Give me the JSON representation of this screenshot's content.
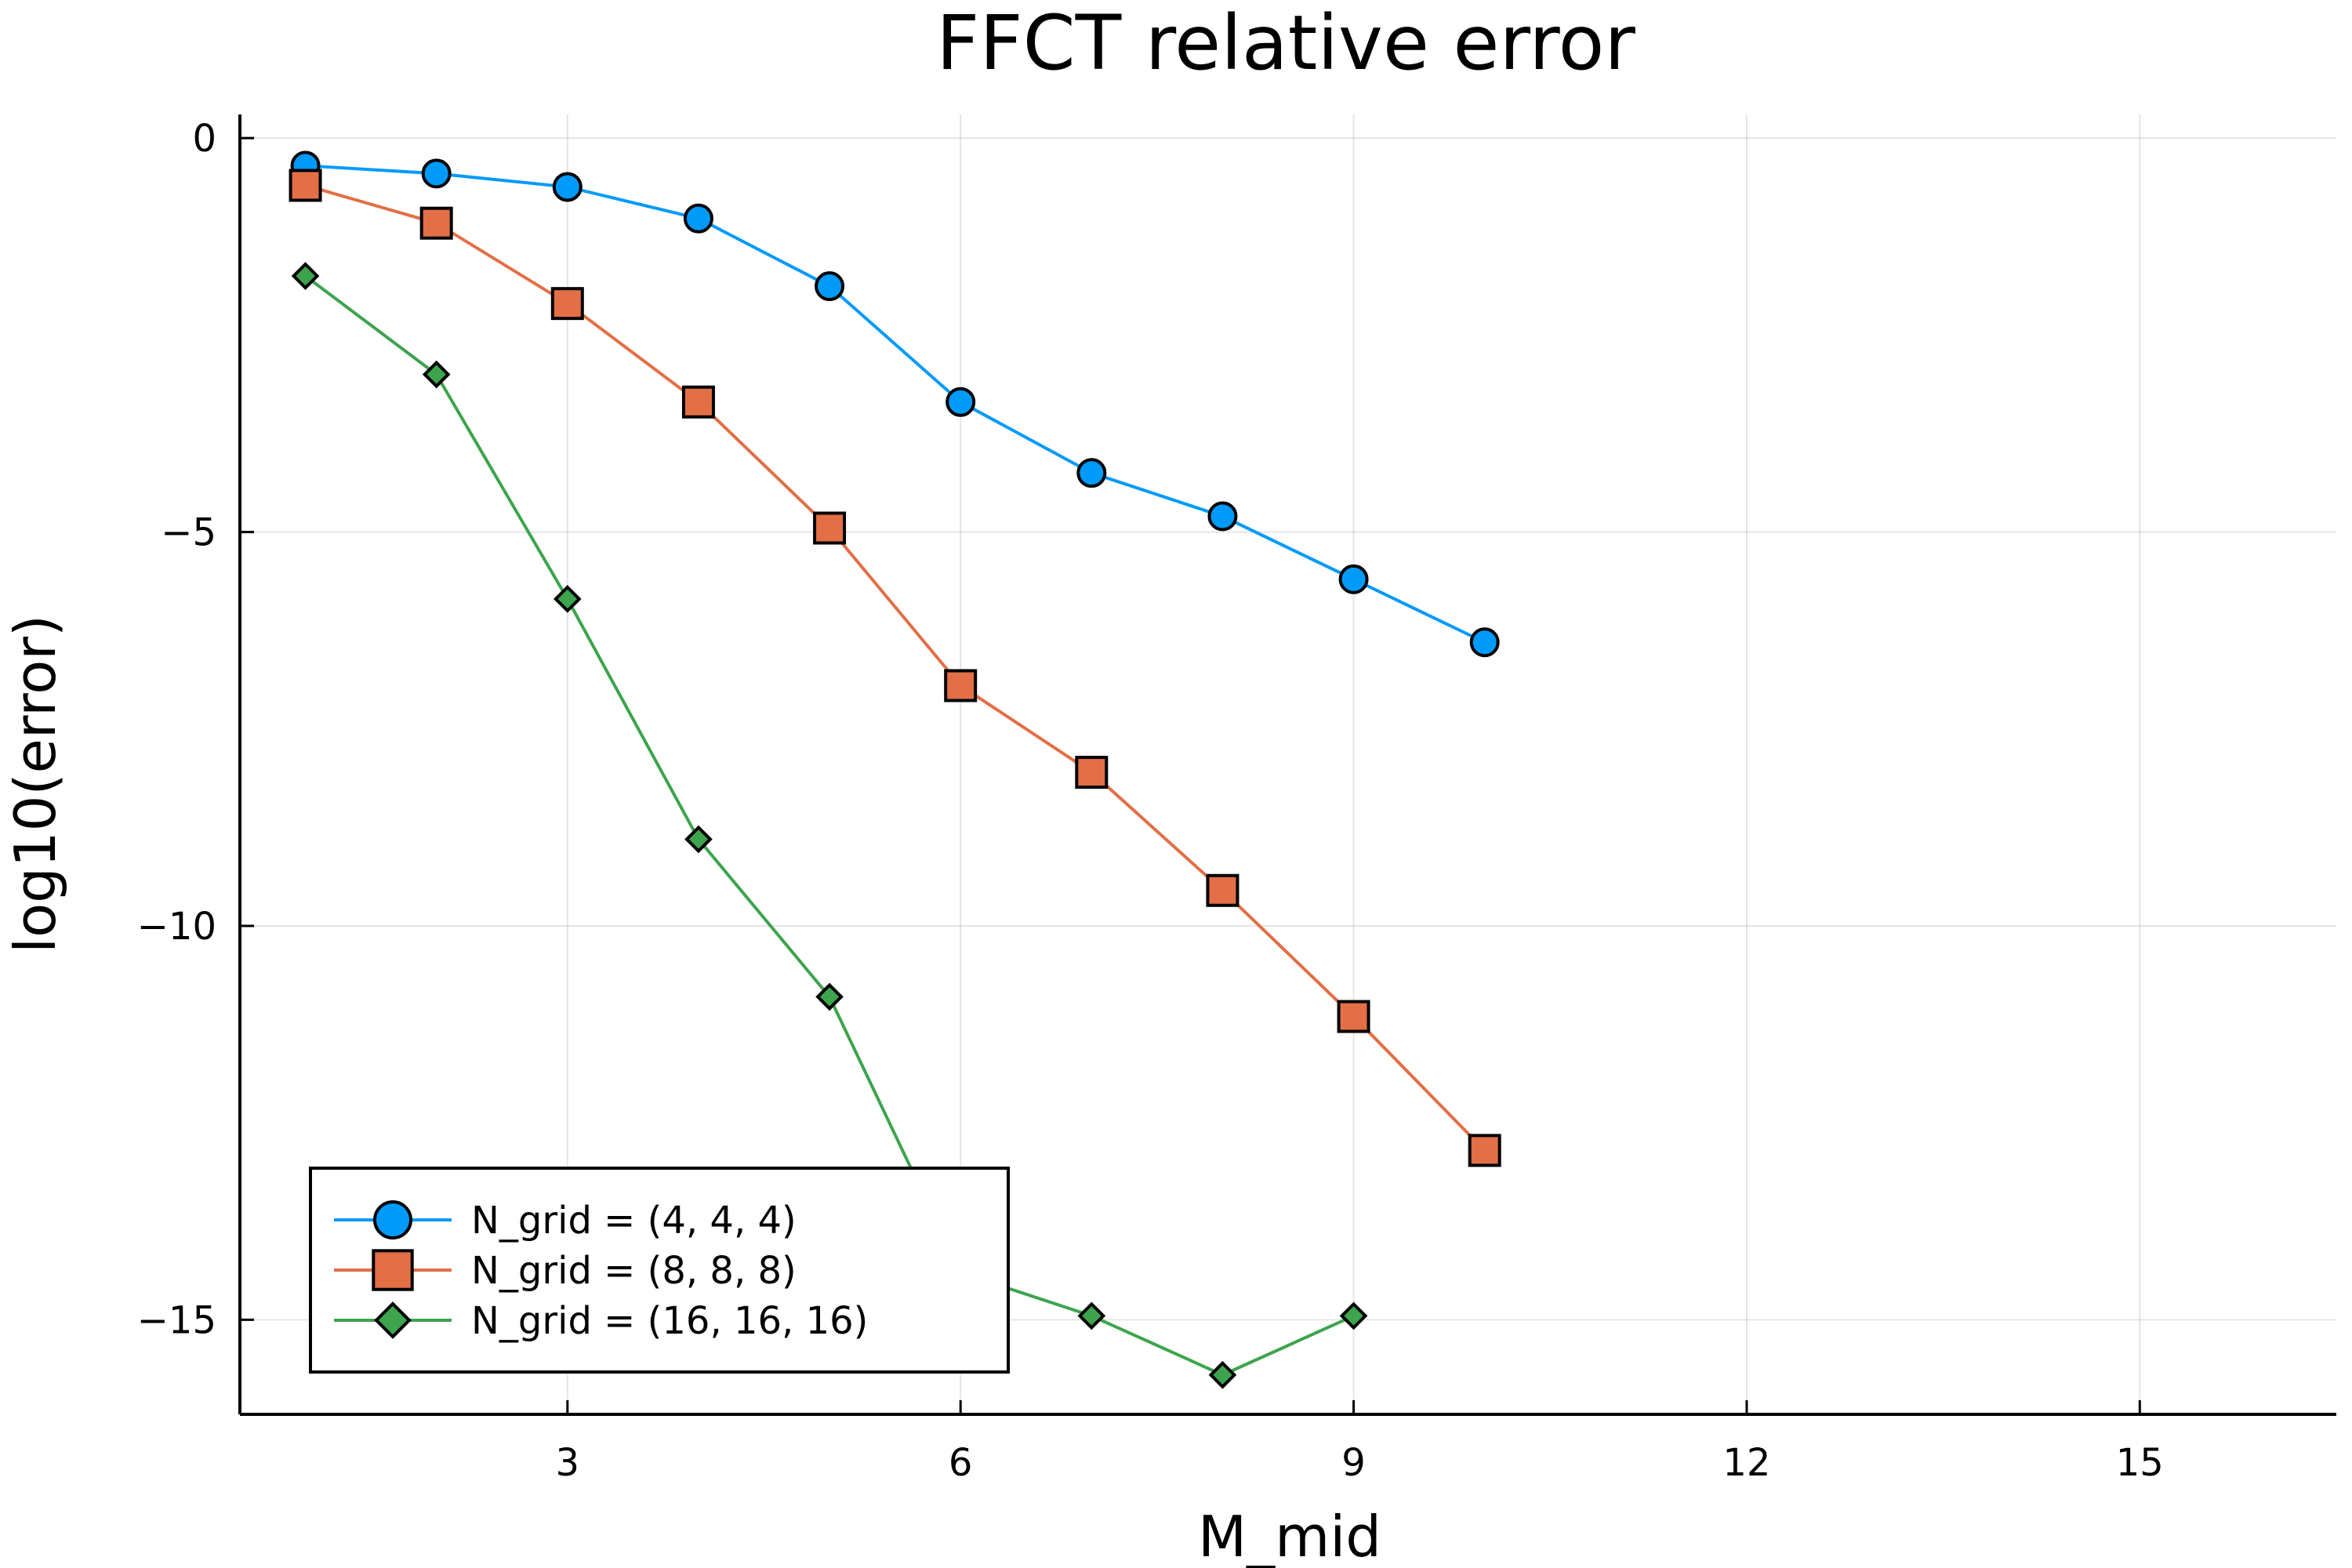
{
  "chart_data": {
    "type": "line",
    "title": "FFCT relative error",
    "xlabel": "M_mid",
    "ylabel": "log10(error)",
    "xlim": [
      0.5,
      16.5
    ],
    "ylim": [
      -16.2,
      0.3
    ],
    "xticks": [
      3,
      6,
      9,
      12,
      15
    ],
    "yticks": [
      0,
      -5,
      -10,
      -15
    ],
    "xtick_labels": [
      "3",
      "6",
      "9",
      "12",
      "15"
    ],
    "ytick_labels": [
      "0",
      "−5",
      "−10",
      "−15"
    ],
    "grid": true,
    "legend_position": "bottom-left",
    "series": [
      {
        "name": "N_grid = (4, 4, 4)",
        "color": "#009af9",
        "marker": "circle",
        "x": [
          1,
          2,
          3,
          4,
          5,
          6,
          7,
          8,
          9,
          10
        ],
        "y": [
          -0.35,
          -0.45,
          -0.62,
          -1.02,
          -1.88,
          -3.35,
          -4.25,
          -4.8,
          -5.6,
          -6.4
        ]
      },
      {
        "name": "N_grid = (8, 8, 8)",
        "color": "#e26f46",
        "marker": "square",
        "x": [
          1,
          2,
          3,
          4,
          5,
          6,
          7,
          8,
          9,
          10
        ],
        "y": [
          -0.6,
          -1.08,
          -2.1,
          -3.35,
          -4.95,
          -6.95,
          -8.05,
          -9.55,
          -11.15,
          -12.85
        ]
      },
      {
        "name": "N_grid = (16, 16, 16)",
        "color": "#3da44d",
        "marker": "diamond",
        "x": [
          1,
          2,
          3,
          4,
          5,
          6,
          7,
          8,
          9
        ],
        "y": [
          -1.75,
          -3.0,
          -5.85,
          -8.9,
          -10.9,
          -14.4,
          -14.95,
          -15.7,
          -14.95
        ]
      }
    ]
  }
}
